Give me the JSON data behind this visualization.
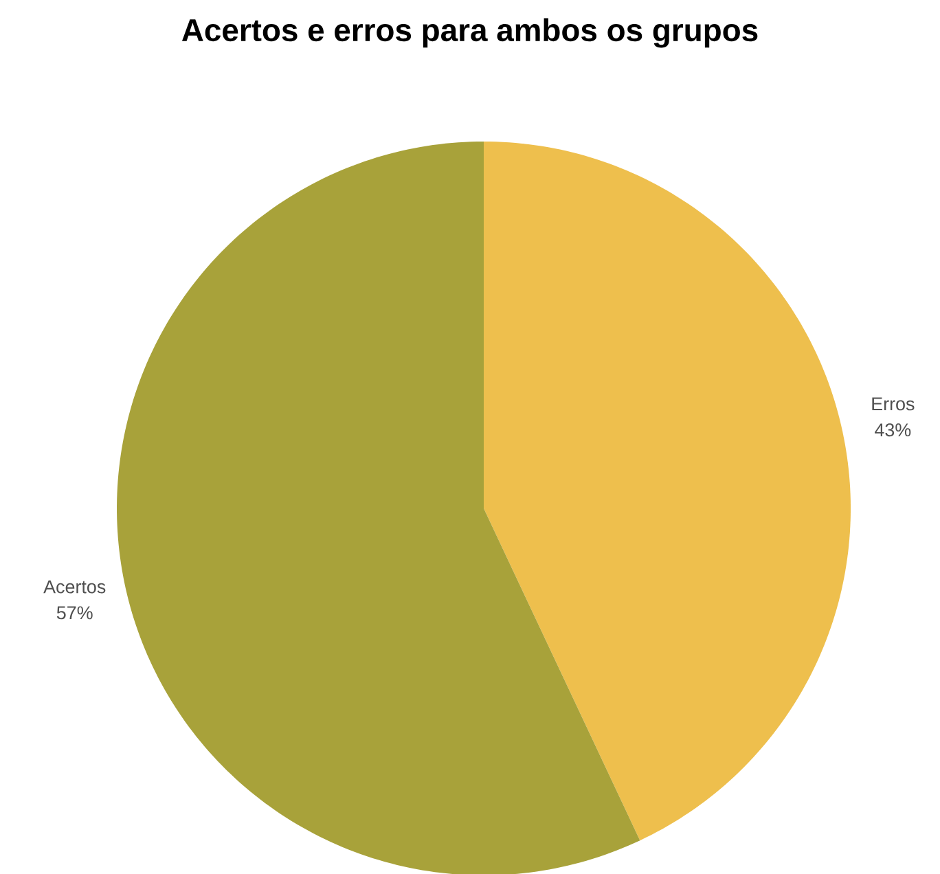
{
  "chart_data": {
    "type": "pie",
    "title": "Acertos e erros para ambos os grupos",
    "categories": [
      "Erros",
      "Acertos"
    ],
    "values": [
      43,
      57
    ],
    "value_labels": [
      "43%",
      "57%"
    ],
    "colors": [
      "#eebf4d",
      "#a8a23a"
    ]
  }
}
